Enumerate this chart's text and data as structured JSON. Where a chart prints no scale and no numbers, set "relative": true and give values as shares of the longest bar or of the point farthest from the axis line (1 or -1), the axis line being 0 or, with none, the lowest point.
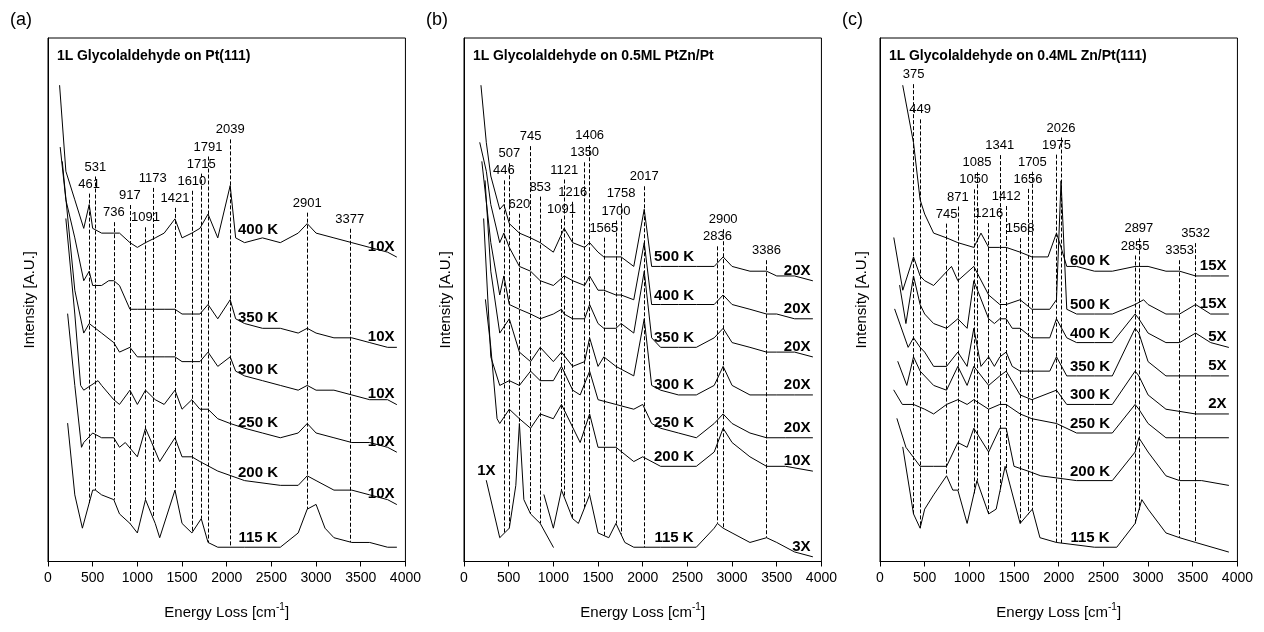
{
  "chart_data": [
    {
      "type": "line",
      "relative": true,
      "title": "1L Glycolaldehyde on Pt(111)",
      "xlabel": "Energy Loss [cm$^{-1}$]",
      "ylabel": "Intensity [A.U.]",
      "xlim": [
        0,
        4000
      ],
      "xticks": [
        0,
        500,
        1000,
        1500,
        2000,
        2500,
        3000,
        3500,
        4000
      ],
      "marker": "none",
      "line_style": "solid",
      "series": [
        {
          "name": "400 K",
          "color": "#000000",
          "x": [
            130,
            200,
            300,
            400,
            461,
            500,
            600,
            736,
            800,
            917,
            1000,
            1091,
            1200,
            1300,
            1421,
            1500,
            1610,
            1700,
            1791,
            1900,
            2039,
            2100,
            2200,
            2400,
            2600,
            2800,
            2901,
            3000,
            3200,
            3400,
            3600,
            3800,
            3900
          ],
          "values": [
            1.0,
            0.82,
            0.76,
            0.7,
            0.75,
            0.7,
            0.69,
            0.69,
            0.69,
            0.67,
            0.66,
            0.67,
            0.68,
            0.69,
            0.72,
            0.68,
            0.69,
            0.7,
            0.73,
            0.68,
            0.79,
            0.68,
            0.67,
            0.68,
            0.67,
            0.69,
            0.71,
            0.69,
            0.68,
            0.67,
            0.66,
            0.65,
            0.64
          ]
        },
        {
          "name": "350 K",
          "color": "#000000",
          "x": [
            137,
            200,
            300,
            400,
            461,
            500,
            600,
            680,
            736,
            800,
            917,
            1000,
            1091,
            1200,
            1300,
            1421,
            1500,
            1610,
            1700,
            1791,
            1900,
            2039,
            2100,
            2200,
            2400,
            2600,
            2800,
            2901,
            3000,
            3200,
            3400,
            3600,
            3800,
            3900
          ],
          "values": [
            0.87,
            0.76,
            0.68,
            0.59,
            0.61,
            0.58,
            0.58,
            0.59,
            0.59,
            0.58,
            0.53,
            0.53,
            0.53,
            0.53,
            0.53,
            0.53,
            0.52,
            0.52,
            0.52,
            0.54,
            0.51,
            0.55,
            0.51,
            0.5,
            0.49,
            0.49,
            0.48,
            0.49,
            0.48,
            0.47,
            0.47,
            0.46,
            0.45,
            0.45
          ]
        },
        {
          "name": "300 K",
          "color": "#000000",
          "x": [
            160,
            300,
            400,
            461,
            600,
            736,
            800,
            917,
            1000,
            1091,
            1200,
            1300,
            1421,
            1500,
            1610,
            1700,
            1791,
            1900,
            2039,
            2100,
            2200,
            2400,
            2600,
            2800,
            2901,
            3000,
            3200,
            3400,
            3600,
            3800,
            3900
          ],
          "values": [
            0.84,
            0.57,
            0.48,
            0.5,
            0.48,
            0.46,
            0.44,
            0.45,
            0.43,
            0.43,
            0.43,
            0.43,
            0.43,
            0.42,
            0.42,
            0.42,
            0.44,
            0.41,
            0.43,
            0.4,
            0.39,
            0.38,
            0.37,
            0.36,
            0.37,
            0.36,
            0.36,
            0.35,
            0.34,
            0.34,
            0.33
          ]
        },
        {
          "name": "250 K",
          "color": "#000000",
          "x": [
            200,
            300,
            365,
            400,
            560,
            600,
            736,
            800,
            917,
            1000,
            1091,
            1200,
            1300,
            1421,
            1500,
            1610,
            1700,
            1791,
            1900,
            2039,
            2200,
            2400,
            2600,
            2800,
            2901,
            3000,
            3200,
            3400,
            3600,
            3800,
            3900
          ],
          "values": [
            0.72,
            0.52,
            0.37,
            0.36,
            0.38,
            0.37,
            0.34,
            0.33,
            0.36,
            0.33,
            0.36,
            0.34,
            0.33,
            0.36,
            0.32,
            0.34,
            0.32,
            0.32,
            0.3,
            0.29,
            0.28,
            0.27,
            0.26,
            0.27,
            0.29,
            0.27,
            0.26,
            0.25,
            0.25,
            0.24,
            0.23
          ]
        },
        {
          "name": "200 K",
          "color": "#000000",
          "x": [
            220,
            300,
            375,
            400,
            500,
            600,
            736,
            800,
            865,
            1000,
            1091,
            1160,
            1250,
            1421,
            1500,
            1610,
            1700,
            1900,
            2200,
            2600,
            2800,
            2901,
            3000,
            3200,
            3400,
            3600,
            3800,
            3900
          ],
          "values": [
            0.52,
            0.37,
            0.24,
            0.25,
            0.27,
            0.26,
            0.26,
            0.24,
            0.25,
            0.22,
            0.28,
            0.25,
            0.21,
            0.26,
            0.22,
            0.22,
            0.21,
            0.19,
            0.17,
            0.16,
            0.16,
            0.18,
            0.17,
            0.15,
            0.15,
            0.14,
            0.13,
            0.12
          ]
        },
        {
          "name": "115 K",
          "color": "#000000",
          "x": [
            220,
            300,
            385,
            500,
            531,
            600,
            736,
            800,
            917,
            1000,
            1091,
            1200,
            1250,
            1421,
            1500,
            1610,
            1715,
            1791,
            1900,
            2200,
            2600,
            2800,
            2901,
            3000,
            3100,
            3200,
            3400,
            3600,
            3800,
            3900
          ],
          "values": [
            0.29,
            0.14,
            0.07,
            0.15,
            0.15,
            0.14,
            0.13,
            0.1,
            0.08,
            0.06,
            0.13,
            0.08,
            0.05,
            0.15,
            0.08,
            0.06,
            0.09,
            0.04,
            0.03,
            0.03,
            0.03,
            0.06,
            0.11,
            0.12,
            0.07,
            0.05,
            0.04,
            0.04,
            0.03,
            0.03
          ]
        }
      ],
      "ref_lines": [
        {
          "axis": "x",
          "value": 461,
          "label": "461",
          "line_style": "dashed"
        },
        {
          "axis": "x",
          "value": 531,
          "label": "531",
          "line_style": "dashed"
        },
        {
          "axis": "x",
          "value": 736,
          "label": "736",
          "line_style": "dashed"
        },
        {
          "axis": "x",
          "value": 917,
          "label": "917",
          "line_style": "dashed"
        },
        {
          "axis": "x",
          "value": 1091,
          "label": "1091",
          "line_style": "dashed"
        },
        {
          "axis": "x",
          "value": 1173,
          "label": "1173",
          "line_style": "dashed"
        },
        {
          "axis": "x",
          "value": 1421,
          "label": "1421",
          "line_style": "dashed"
        },
        {
          "axis": "x",
          "value": 1610,
          "label": "1610",
          "line_style": "dashed"
        },
        {
          "axis": "x",
          "value": 1715,
          "label": "1715",
          "line_style": "dashed"
        },
        {
          "axis": "x",
          "value": 1791,
          "label": "1791",
          "line_style": "dashed"
        },
        {
          "axis": "x",
          "value": 2039,
          "label": "2039",
          "line_style": "dashed"
        },
        {
          "axis": "x",
          "value": 2901,
          "label": "2901",
          "line_style": "dashed"
        },
        {
          "axis": "x",
          "value": 3377,
          "label": "3377",
          "line_style": "dashed"
        }
      ],
      "annotations": [
        "(a)",
        "10X",
        "10X",
        "10X",
        "10X",
        "10X"
      ]
    },
    {
      "type": "line",
      "relative": true,
      "title": "1L Glycolaldehyde on 0.5ML PtZn/Pt",
      "xlabel": "Energy Loss [cm$^{-1}$]",
      "ylabel": "Intensity [A.U.]",
      "xlim": [
        0,
        4000
      ],
      "xticks": [
        0,
        500,
        1000,
        1500,
        2000,
        2500,
        3000,
        3500,
        4000
      ],
      "marker": "none",
      "line_style": "solid",
      "series": [
        {
          "name": "500 K",
          "color": "#000000",
          "x": [
            190,
            250,
            300,
            400,
            446,
            507,
            620,
            745,
            853,
            1000,
            1121,
            1216,
            1350,
            1406,
            1500,
            1565,
            1700,
            1758,
            1900,
            2017,
            2100,
            2200,
            2400,
            2600,
            2800,
            2900,
            3000,
            3200,
            3386,
            3500,
            3700,
            3900
          ],
          "values": [
            1.0,
            0.88,
            0.81,
            0.74,
            0.75,
            0.71,
            0.69,
            0.68,
            0.67,
            0.65,
            0.7,
            0.67,
            0.66,
            0.67,
            0.65,
            0.64,
            0.64,
            0.64,
            0.62,
            0.74,
            0.62,
            0.62,
            0.62,
            0.62,
            0.62,
            0.64,
            0.62,
            0.61,
            0.61,
            0.6,
            0.6,
            0.59
          ]
        },
        {
          "name": "400 K",
          "color": "#000000",
          "x": [
            177,
            250,
            300,
            400,
            446,
            507,
            620,
            745,
            853,
            1000,
            1121,
            1216,
            1350,
            1406,
            1500,
            1565,
            1700,
            1758,
            1900,
            2017,
            2100,
            2200,
            2400,
            2600,
            2800,
            2900,
            3000,
            3200,
            3386,
            3500,
            3700,
            3900
          ],
          "values": [
            0.88,
            0.82,
            0.75,
            0.67,
            0.69,
            0.66,
            0.62,
            0.61,
            0.59,
            0.58,
            0.6,
            0.59,
            0.58,
            0.6,
            0.57,
            0.57,
            0.56,
            0.56,
            0.55,
            0.67,
            0.54,
            0.54,
            0.54,
            0.54,
            0.54,
            0.56,
            0.54,
            0.53,
            0.52,
            0.52,
            0.51,
            0.51
          ]
        },
        {
          "name": "350 K",
          "color": "#000000",
          "x": [
            200,
            300,
            400,
            446,
            507,
            620,
            745,
            853,
            1000,
            1091,
            1121,
            1216,
            1350,
            1406,
            1500,
            1565,
            1700,
            1758,
            1900,
            2017,
            2100,
            2200,
            2400,
            2600,
            2800,
            2900,
            3000,
            3200,
            3386,
            3500,
            3700,
            3900
          ],
          "values": [
            0.84,
            0.67,
            0.56,
            0.6,
            0.54,
            0.53,
            0.52,
            0.51,
            0.52,
            0.53,
            0.52,
            0.51,
            0.51,
            0.54,
            0.5,
            0.49,
            0.49,
            0.5,
            0.48,
            0.61,
            0.47,
            0.45,
            0.45,
            0.45,
            0.47,
            0.49,
            0.46,
            0.45,
            0.44,
            0.44,
            0.44,
            0.43
          ]
        },
        {
          "name": "300 K",
          "color": "#000000",
          "x": [
            236,
            300,
            400,
            507,
            620,
            745,
            853,
            1000,
            1091,
            1216,
            1350,
            1406,
            1500,
            1565,
            1700,
            1900,
            2017,
            2100,
            2200,
            2400,
            2600,
            2800,
            2900,
            3000,
            3200,
            3386,
            3500,
            3700,
            3900
          ],
          "values": [
            0.8,
            0.61,
            0.48,
            0.51,
            0.44,
            0.42,
            0.45,
            0.42,
            0.44,
            0.41,
            0.42,
            0.47,
            0.41,
            0.43,
            0.41,
            0.39,
            0.51,
            0.37,
            0.36,
            0.35,
            0.35,
            0.37,
            0.41,
            0.37,
            0.35,
            0.35,
            0.35,
            0.35,
            0.35
          ]
        },
        {
          "name": "250 K",
          "color": "#000000",
          "x": [
            220,
            300,
            400,
            507,
            620,
            745,
            853,
            1000,
            1091,
            1216,
            1300,
            1406,
            1500,
            1700,
            1900,
            2000,
            2100,
            2200,
            2400,
            2600,
            2800,
            2900,
            3000,
            3200,
            3386,
            3600,
            3900
          ],
          "values": [
            0.72,
            0.43,
            0.37,
            0.38,
            0.37,
            0.4,
            0.38,
            0.38,
            0.41,
            0.36,
            0.35,
            0.4,
            0.34,
            0.33,
            0.32,
            0.33,
            0.29,
            0.28,
            0.27,
            0.26,
            0.29,
            0.31,
            0.29,
            0.27,
            0.26,
            0.26,
            0.26
          ]
        },
        {
          "name": "200 K",
          "color": "#000000",
          "x": [
            240,
            300,
            370,
            400,
            507,
            620,
            745,
            853,
            1000,
            1091,
            1300,
            1406,
            1500,
            1700,
            1900,
            2000,
            2200,
            2600,
            2800,
            2900,
            3000,
            3200,
            3386,
            3600,
            3900
          ],
          "values": [
            0.55,
            0.45,
            0.3,
            0.29,
            0.32,
            0.3,
            0.28,
            0.31,
            0.3,
            0.33,
            0.25,
            0.31,
            0.24,
            0.24,
            0.21,
            0.22,
            0.2,
            0.2,
            0.23,
            0.28,
            0.25,
            0.22,
            0.2,
            0.2,
            0.19
          ]
        },
        {
          "color": "#000000",
          "x": [
            250,
            400,
            507,
            580,
            620,
            670,
            745,
            853,
            1000
          ],
          "values": [
            0.17,
            0.05,
            0.07,
            0.16,
            0.29,
            0.13,
            0.1,
            0.08,
            0.03
          ]
        },
        {
          "name": "115 K",
          "color": "#000000",
          "x": [
            895,
            1000,
            1091,
            1216,
            1280,
            1406,
            1500,
            1620,
            1700,
            1800,
            1900,
            2200,
            2600,
            2800,
            2836,
            2900,
            3000,
            3200,
            3386,
            3500,
            3700,
            3900
          ],
          "values": [
            0.14,
            0.07,
            0.15,
            0.09,
            0.08,
            0.14,
            0.06,
            0.05,
            0.08,
            0.04,
            0.03,
            0.03,
            0.03,
            0.07,
            0.08,
            0.07,
            0.06,
            0.04,
            0.05,
            0.04,
            0.02,
            0.01
          ]
        }
      ],
      "ref_lines": [
        {
          "axis": "x",
          "value": 446,
          "label": "446",
          "line_style": "dashed"
        },
        {
          "axis": "x",
          "value": 507,
          "label": "507",
          "line_style": "dashed"
        },
        {
          "axis": "x",
          "value": 620,
          "label": "620",
          "line_style": "dashed"
        },
        {
          "axis": "x",
          "value": 745,
          "label": "745",
          "line_style": "dashed"
        },
        {
          "axis": "x",
          "value": 853,
          "label": "853",
          "line_style": "dashed"
        },
        {
          "axis": "x",
          "value": 1091,
          "label": "1091",
          "line_style": "dashed"
        },
        {
          "axis": "x",
          "value": 1121,
          "label": "1121",
          "line_style": "dashed"
        },
        {
          "axis": "x",
          "value": 1216,
          "label": "1216",
          "line_style": "dashed"
        },
        {
          "axis": "x",
          "value": 1350,
          "label": "1350",
          "line_style": "dashed"
        },
        {
          "axis": "x",
          "value": 1406,
          "label": "1406",
          "line_style": "dashed"
        },
        {
          "axis": "x",
          "value": 1565,
          "label": "1565",
          "line_style": "dashed"
        },
        {
          "axis": "x",
          "value": 1700,
          "label": "1700",
          "line_style": "dashed"
        },
        {
          "axis": "x",
          "value": 1758,
          "label": "1758",
          "line_style": "dashed"
        },
        {
          "axis": "x",
          "value": 2017,
          "label": "2017",
          "line_style": "dashed"
        },
        {
          "axis": "x",
          "value": 2836,
          "label": "2836",
          "line_style": "dashed"
        },
        {
          "axis": "x",
          "value": 2900,
          "label": "2900",
          "line_style": "dashed"
        },
        {
          "axis": "x",
          "value": 3386,
          "label": "3386",
          "line_style": "dashed"
        }
      ],
      "annotations": [
        "(b)",
        "20X",
        "20X",
        "20X",
        "20X",
        "20X",
        "10X",
        "1X",
        "3X"
      ]
    },
    {
      "type": "line",
      "relative": true,
      "title": "1L Glycolaldehyde on 0.4ML Zn/Pt(111)",
      "xlabel": "Energy Loss [cm$^{-1}$]",
      "ylabel": "Intensity [A.U.]",
      "xlim": [
        0,
        4000
      ],
      "xticks": [
        0,
        500,
        1000,
        1500,
        2000,
        2500,
        3000,
        3500,
        4000
      ],
      "marker": "none",
      "line_style": "solid",
      "series": [
        {
          "name": "600 K",
          "color": "#000000",
          "x": [
            255,
            375,
            449,
            500,
            600,
            745,
            871,
            1050,
            1130,
            1216,
            1341,
            1412,
            1568,
            1700,
            1880,
            1975,
            2026,
            2090,
            2200,
            2400,
            2600,
            2855,
            2897,
            3000,
            3200,
            3353,
            3532,
            3700,
            3900
          ],
          "values": [
            1.0,
            0.88,
            0.76,
            0.73,
            0.69,
            0.68,
            0.67,
            0.66,
            0.69,
            0.66,
            0.66,
            0.66,
            0.65,
            0.64,
            0.64,
            0.69,
            0.66,
            0.62,
            0.62,
            0.61,
            0.61,
            0.62,
            0.62,
            0.62,
            0.61,
            0.61,
            0.6,
            0.6,
            0.6
          ]
        },
        {
          "name": "500 K",
          "color": "#000000",
          "x": [
            155,
            255,
            375,
            449,
            500,
            600,
            800,
            871,
            1050,
            1216,
            1341,
            1412,
            1568,
            1700,
            1900,
            1975,
            2026,
            2090,
            2200,
            2400,
            2600,
            2855,
            2950,
            3000,
            3200,
            3353,
            3532,
            3700,
            3900
          ],
          "values": [
            0.68,
            0.57,
            0.64,
            0.6,
            0.59,
            0.58,
            0.62,
            0.59,
            0.62,
            0.56,
            0.54,
            0.54,
            0.55,
            0.53,
            0.53,
            0.55,
            0.8,
            0.53,
            0.52,
            0.52,
            0.52,
            0.54,
            0.55,
            0.54,
            0.52,
            0.52,
            0.54,
            0.52,
            0.52
          ]
        },
        {
          "name": "400 K",
          "color": "#000000",
          "x": [
            220,
            290,
            375,
            449,
            500,
            600,
            745,
            871,
            975,
            1050,
            1216,
            1280,
            1341,
            1412,
            1480,
            1568,
            1700,
            1900,
            1975,
            2090,
            2200,
            2400,
            2600,
            2855,
            2897,
            3000,
            3200,
            3353,
            3532,
            3700,
            3900
          ],
          "values": [
            0.58,
            0.5,
            0.6,
            0.54,
            0.52,
            0.5,
            0.49,
            0.51,
            0.49,
            0.59,
            0.51,
            0.5,
            0.51,
            0.51,
            0.49,
            0.49,
            0.47,
            0.47,
            0.51,
            0.47,
            0.46,
            0.46,
            0.46,
            0.52,
            0.51,
            0.48,
            0.46,
            0.46,
            0.48,
            0.46,
            0.45
          ]
        },
        {
          "name": "350 K",
          "color": "#000000",
          "x": [
            165,
            315,
            375,
            449,
            500,
            600,
            745,
            871,
            975,
            1050,
            1130,
            1216,
            1280,
            1341,
            1412,
            1480,
            1568,
            1700,
            1900,
            1975,
            2090,
            2200,
            2400,
            2600,
            2855,
            2897,
            3000,
            3200,
            3353,
            3532,
            3700,
            3900
          ],
          "values": [
            0.53,
            0.45,
            0.47,
            0.45,
            0.44,
            0.41,
            0.41,
            0.44,
            0.41,
            0.49,
            0.41,
            0.43,
            0.41,
            0.43,
            0.44,
            0.41,
            0.4,
            0.4,
            0.4,
            0.43,
            0.39,
            0.39,
            0.39,
            0.39,
            0.49,
            0.48,
            0.42,
            0.39,
            0.39,
            0.39,
            0.39,
            0.39
          ]
        },
        {
          "name": "300 K",
          "color": "#000000",
          "x": [
            200,
            300,
            375,
            449,
            600,
            745,
            871,
            975,
            1050,
            1216,
            1341,
            1412,
            1568,
            1700,
            1975,
            2090,
            2400,
            2600,
            2855,
            2897,
            3000,
            3200,
            3532,
            3900
          ],
          "values": [
            0.42,
            0.37,
            0.43,
            0.4,
            0.37,
            0.36,
            0.41,
            0.37,
            0.41,
            0.37,
            0.39,
            0.4,
            0.35,
            0.34,
            0.36,
            0.33,
            0.33,
            0.33,
            0.4,
            0.39,
            0.35,
            0.32,
            0.31,
            0.31
          ]
        },
        {
          "name": "250 K",
          "color": "#000000",
          "x": [
            155,
            250,
            375,
            500,
            600,
            745,
            871,
            975,
            1050,
            1216,
            1341,
            1412,
            1568,
            1700,
            1975,
            2200,
            2600,
            2855,
            2897,
            3000,
            3200,
            3532,
            3900
          ],
          "values": [
            0.36,
            0.33,
            0.33,
            0.32,
            0.31,
            0.33,
            0.34,
            0.33,
            0.34,
            0.32,
            0.33,
            0.33,
            0.31,
            0.3,
            0.29,
            0.27,
            0.27,
            0.33,
            0.32,
            0.29,
            0.26,
            0.26,
            0.26
          ]
        },
        {
          "name": "200 K",
          "color": "#000000",
          "x": [
            190,
            290,
            449,
            600,
            745,
            871,
            975,
            1050,
            1216,
            1341,
            1412,
            1500,
            1656,
            1800,
            2200,
            2600,
            2855,
            2897,
            3000,
            3200,
            3353,
            3600,
            3900
          ],
          "values": [
            0.3,
            0.24,
            0.2,
            0.2,
            0.2,
            0.25,
            0.24,
            0.28,
            0.23,
            0.28,
            0.28,
            0.2,
            0.19,
            0.18,
            0.17,
            0.17,
            0.23,
            0.26,
            0.23,
            0.18,
            0.17,
            0.17,
            0.16
          ]
        },
        {
          "name": "115 K",
          "color": "#000000",
          "x": [
            255,
            375,
            449,
            500,
            600,
            745,
            815,
            871,
            975,
            1085,
            1216,
            1300,
            1400,
            1568,
            1705,
            1790,
            1975,
            2400,
            2650,
            2855,
            2930,
            3000,
            3200,
            3353,
            3532,
            3900
          ],
          "values": [
            0.24,
            0.1,
            0.07,
            0.11,
            0.14,
            0.18,
            0.15,
            0.15,
            0.08,
            0.17,
            0.1,
            0.11,
            0.2,
            0.08,
            0.11,
            0.05,
            0.04,
            0.03,
            0.03,
            0.08,
            0.13,
            0.11,
            0.06,
            0.05,
            0.04,
            0.02
          ]
        }
      ],
      "ref_lines": [
        {
          "axis": "x",
          "value": 375,
          "label": "375",
          "line_style": "dashed"
        },
        {
          "axis": "x",
          "value": 449,
          "label": "449",
          "line_style": "dashed"
        },
        {
          "axis": "x",
          "value": 745,
          "label": "745",
          "line_style": "dashed"
        },
        {
          "axis": "x",
          "value": 871,
          "label": "871",
          "line_style": "dashed"
        },
        {
          "axis": "x",
          "value": 1050,
          "label": "1050",
          "line_style": "dashed"
        },
        {
          "axis": "x",
          "value": 1085,
          "label": "1085",
          "line_style": "dashed"
        },
        {
          "axis": "x",
          "value": 1216,
          "label": "1216",
          "line_style": "dashed"
        },
        {
          "axis": "x",
          "value": 1341,
          "label": "1341",
          "line_style": "dashed"
        },
        {
          "axis": "x",
          "value": 1412,
          "label": "1412",
          "line_style": "dashed"
        },
        {
          "axis": "x",
          "value": 1568,
          "label": "1568",
          "line_style": "dashed"
        },
        {
          "axis": "x",
          "value": 1656,
          "label": "1656",
          "line_style": "dashed"
        },
        {
          "axis": "x",
          "value": 1705,
          "label": "1705",
          "line_style": "dashed"
        },
        {
          "axis": "x",
          "value": 1975,
          "label": "1975",
          "line_style": "dashed"
        },
        {
          "axis": "x",
          "value": 2026,
          "label": "2026",
          "line_style": "dashed"
        },
        {
          "axis": "x",
          "value": 2855,
          "label": "2855",
          "line_style": "dashed"
        },
        {
          "axis": "x",
          "value": 2897,
          "label": "2897",
          "line_style": "dashed"
        },
        {
          "axis": "x",
          "value": 3353,
          "label": "3353",
          "line_style": "dashed"
        },
        {
          "axis": "x",
          "value": 3532,
          "label": "3532",
          "line_style": "dashed"
        }
      ],
      "annotations": [
        "(c)",
        "15X",
        "15X",
        "5X",
        "5X",
        "2X"
      ]
    }
  ]
}
